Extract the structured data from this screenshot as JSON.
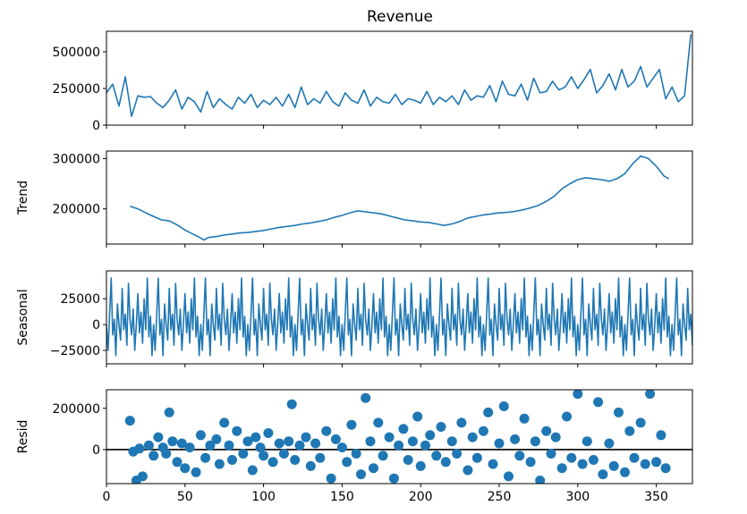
{
  "chart_data": [
    {
      "type": "line",
      "title": "Revenue",
      "ylabel": "",
      "x_range": [
        0,
        373
      ],
      "ylim": [
        0,
        640000
      ],
      "yticks": [
        0,
        250000,
        500000
      ],
      "ytick_labels": [
        "0",
        "250000",
        "500000"
      ],
      "color": "#1f77b4",
      "series": [
        {
          "x": [
            0,
            4,
            8,
            12,
            16,
            20,
            24,
            28,
            32,
            36,
            40,
            44,
            48,
            52,
            56,
            60,
            64,
            68,
            72,
            76,
            80,
            84,
            88,
            92,
            96,
            100,
            104,
            108,
            112,
            116,
            120,
            124,
            128,
            132,
            136,
            140,
            144,
            148,
            152,
            156,
            160,
            164,
            168,
            172,
            176,
            180,
            184,
            188,
            192,
            196,
            200,
            204,
            208,
            212,
            216,
            220,
            224,
            228,
            232,
            236,
            240,
            244,
            248,
            252,
            256,
            260,
            264,
            268,
            272,
            276,
            280,
            284,
            288,
            292,
            296,
            300,
            304,
            308,
            312,
            316,
            320,
            324,
            328,
            332,
            336,
            340,
            344,
            348,
            352,
            356,
            360,
            364,
            368,
            372
          ],
          "y": [
            220000,
            280000,
            130000,
            330000,
            60000,
            200000,
            190000,
            195000,
            150000,
            120000,
            170000,
            240000,
            110000,
            190000,
            160000,
            90000,
            230000,
            120000,
            180000,
            140000,
            110000,
            190000,
            150000,
            210000,
            120000,
            170000,
            140000,
            190000,
            130000,
            210000,
            120000,
            260000,
            140000,
            180000,
            150000,
            230000,
            160000,
            130000,
            220000,
            170000,
            150000,
            240000,
            130000,
            190000,
            160000,
            150000,
            210000,
            140000,
            180000,
            170000,
            150000,
            230000,
            140000,
            190000,
            160000,
            200000,
            140000,
            240000,
            170000,
            200000,
            190000,
            270000,
            160000,
            300000,
            210000,
            200000,
            280000,
            170000,
            320000,
            220000,
            230000,
            300000,
            240000,
            260000,
            330000,
            250000,
            310000,
            380000,
            220000,
            270000,
            350000,
            240000,
            380000,
            260000,
            300000,
            400000,
            260000,
            320000,
            380000,
            180000,
            260000,
            160000,
            200000,
            620000
          ]
        }
      ]
    },
    {
      "type": "line",
      "title": "",
      "ylabel": "Trend",
      "x_range": [
        0,
        373
      ],
      "ylim": [
        130000,
        315000
      ],
      "yticks": [
        200000,
        300000
      ],
      "ytick_labels": [
        "200000",
        "300000"
      ],
      "color": "#1f77b4",
      "series": [
        {
          "x": [
            15,
            20,
            25,
            30,
            35,
            40,
            45,
            50,
            55,
            60,
            62,
            65,
            70,
            75,
            80,
            85,
            90,
            95,
            100,
            105,
            110,
            115,
            120,
            125,
            130,
            135,
            140,
            145,
            150,
            155,
            160,
            165,
            170,
            175,
            180,
            185,
            190,
            195,
            200,
            205,
            210,
            215,
            220,
            225,
            230,
            235,
            240,
            245,
            250,
            255,
            260,
            265,
            270,
            275,
            280,
            285,
            290,
            295,
            300,
            305,
            310,
            315,
            320,
            325,
            330,
            335,
            340,
            345,
            350,
            355,
            358
          ],
          "y": [
            205000,
            200000,
            192000,
            185000,
            178000,
            176000,
            168000,
            158000,
            150000,
            142000,
            138000,
            143000,
            145000,
            148000,
            150000,
            152000,
            153000,
            155000,
            157000,
            160000,
            163000,
            165000,
            167000,
            170000,
            172000,
            175000,
            178000,
            183000,
            187000,
            192000,
            196000,
            194000,
            192000,
            190000,
            186000,
            182000,
            178000,
            176000,
            174000,
            173000,
            170000,
            167000,
            170000,
            175000,
            182000,
            185000,
            188000,
            190000,
            192000,
            193000,
            195000,
            198000,
            202000,
            207000,
            215000,
            225000,
            240000,
            250000,
            258000,
            262000,
            260000,
            258000,
            255000,
            260000,
            270000,
            290000,
            305000,
            300000,
            285000,
            265000,
            260000
          ]
        }
      ]
    },
    {
      "type": "line",
      "title": "",
      "ylabel": "Seasonal",
      "x_range": [
        0,
        373
      ],
      "ylim": [
        -38000,
        52000
      ],
      "yticks": [
        -25000,
        0,
        25000
      ],
      "ytick_labels": [
        "−25000",
        "0",
        "25000"
      ],
      "color": "#1f77b4",
      "series": [
        {
          "x": [],
          "y": [],
          "period": 30,
          "pattern": [
            0,
            -25000,
            10000,
            45000,
            -10000,
            5000,
            -30000,
            20000,
            0,
            -15000,
            35000,
            -5000,
            10000,
            -20000,
            40000,
            5000,
            -10000,
            15000,
            -25000,
            0,
            30000,
            -8000,
            12000,
            -18000,
            25000,
            -5000,
            45000,
            -12000,
            8000,
            -30000
          ]
        }
      ]
    },
    {
      "type": "scatter",
      "title": "",
      "ylabel": "Resid",
      "xlabel": "",
      "x_range": [
        0,
        373
      ],
      "ylim": [
        -165000,
        290000
      ],
      "yticks": [
        0,
        200000
      ],
      "ytick_labels": [
        "0",
        "200000"
      ],
      "xticks": [
        0,
        50,
        100,
        150,
        200,
        250,
        300,
        350
      ],
      "xtick_labels": [
        "0",
        "50",
        "100",
        "150",
        "200",
        "250",
        "300",
        "350"
      ],
      "color": "#1f77b4",
      "series": [
        {
          "x": [
            15,
            17,
            19,
            21,
            23,
            27,
            30,
            33,
            36,
            38,
            40,
            42,
            45,
            48,
            50,
            53,
            57,
            60,
            63,
            66,
            70,
            72,
            75,
            78,
            80,
            83,
            87,
            90,
            93,
            95,
            98,
            100,
            103,
            106,
            110,
            113,
            116,
            118,
            120,
            123,
            127,
            130,
            133,
            136,
            140,
            143,
            146,
            150,
            153,
            156,
            159,
            162,
            165,
            168,
            170,
            173,
            176,
            180,
            183,
            186,
            189,
            192,
            195,
            198,
            200,
            203,
            206,
            210,
            213,
            216,
            220,
            223,
            226,
            230,
            233,
            236,
            240,
            243,
            246,
            250,
            253,
            256,
            260,
            263,
            266,
            270,
            273,
            276,
            280,
            283,
            286,
            290,
            293,
            296,
            300,
            303,
            306,
            310,
            313,
            316,
            320,
            323,
            326,
            330,
            333,
            336,
            340,
            343,
            346,
            350,
            353,
            356
          ],
          "y": [
            140000,
            -10000,
            -150000,
            5000,
            -130000,
            20000,
            -30000,
            60000,
            10000,
            -20000,
            180000,
            40000,
            -60000,
            30000,
            -90000,
            10000,
            -110000,
            70000,
            -40000,
            20000,
            50000,
            -70000,
            130000,
            20000,
            -50000,
            90000,
            -20000,
            40000,
            -100000,
            60000,
            10000,
            -30000,
            80000,
            -60000,
            30000,
            -20000,
            40000,
            220000,
            -50000,
            20000,
            60000,
            -80000,
            30000,
            -40000,
            90000,
            -140000,
            50000,
            10000,
            -60000,
            120000,
            -20000,
            -120000,
            250000,
            40000,
            -90000,
            130000,
            -30000,
            60000,
            -140000,
            20000,
            100000,
            -50000,
            40000,
            160000,
            -80000,
            20000,
            70000,
            -30000,
            110000,
            -60000,
            40000,
            -20000,
            130000,
            -100000,
            60000,
            -40000,
            90000,
            180000,
            -70000,
            30000,
            210000,
            -130000,
            50000,
            -30000,
            150000,
            -60000,
            40000,
            -150000,
            90000,
            -20000,
            60000,
            -90000,
            160000,
            -40000,
            270000,
            -70000,
            40000,
            -50000,
            230000,
            -120000,
            30000,
            -80000,
            180000,
            -110000,
            90000,
            -40000,
            130000,
            -70000,
            270000,
            -60000,
            70000,
            -90000
          ]
        }
      ]
    }
  ]
}
